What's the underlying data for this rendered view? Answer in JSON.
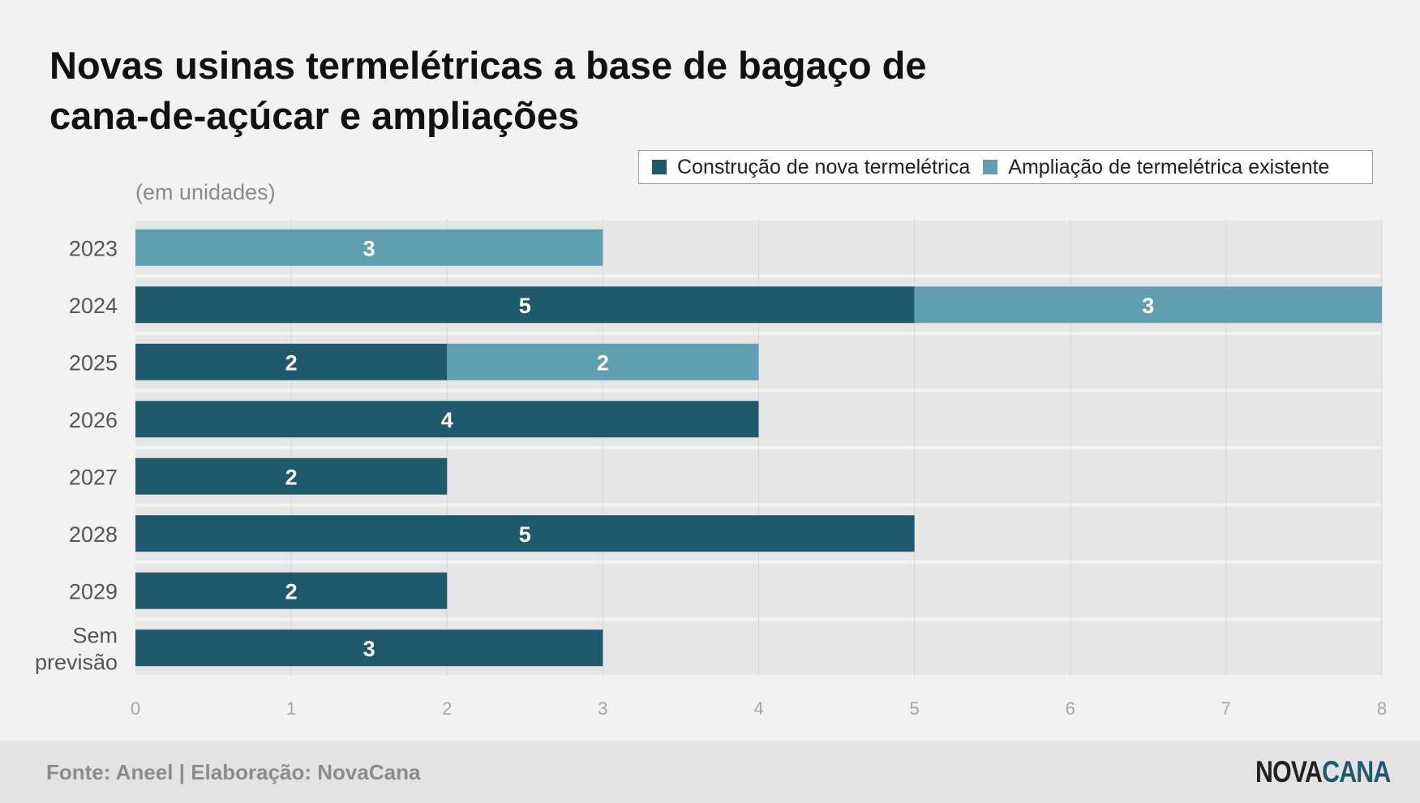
{
  "title_lines": [
    "Novas usinas termelétricas a base de bagaço de",
    "cana-de-açúcar e ampliações"
  ],
  "subtitle": "(em unidades)",
  "colors": {
    "nova": "#1e5a6b",
    "ampliacao": "#5f9faf",
    "band": "#e6e6e6",
    "label": "#ffffff"
  },
  "legend": [
    {
      "label": "Construção de nova termelétrica",
      "color": "#1e5a6b"
    },
    {
      "label": "Ampliação de termelétrica existente",
      "color": "#5f9faf"
    }
  ],
  "chart_data": {
    "type": "bar",
    "orientation": "horizontal",
    "stacked": true,
    "categories": [
      "2023",
      "2024",
      "2025",
      "2026",
      "2027",
      "2028",
      "2029",
      "Sem previsão"
    ],
    "series": [
      {
        "name": "Construção de nova termelétrica",
        "values": [
          0,
          5,
          2,
          4,
          2,
          5,
          2,
          3
        ]
      },
      {
        "name": "Ampliação de termelétrica existente",
        "values": [
          3,
          3,
          2,
          0,
          0,
          0,
          0,
          0
        ]
      }
    ],
    "xlim": [
      0,
      8
    ],
    "xticks": [
      0,
      1,
      2,
      3,
      4,
      5,
      6,
      7,
      8
    ],
    "grid": true,
    "legend_position": "top-right"
  },
  "footer": {
    "source": "Fonte: Aneel | Elaboração: NovaCana",
    "logo_part1": "NOVA",
    "logo_part2": "CANA"
  }
}
